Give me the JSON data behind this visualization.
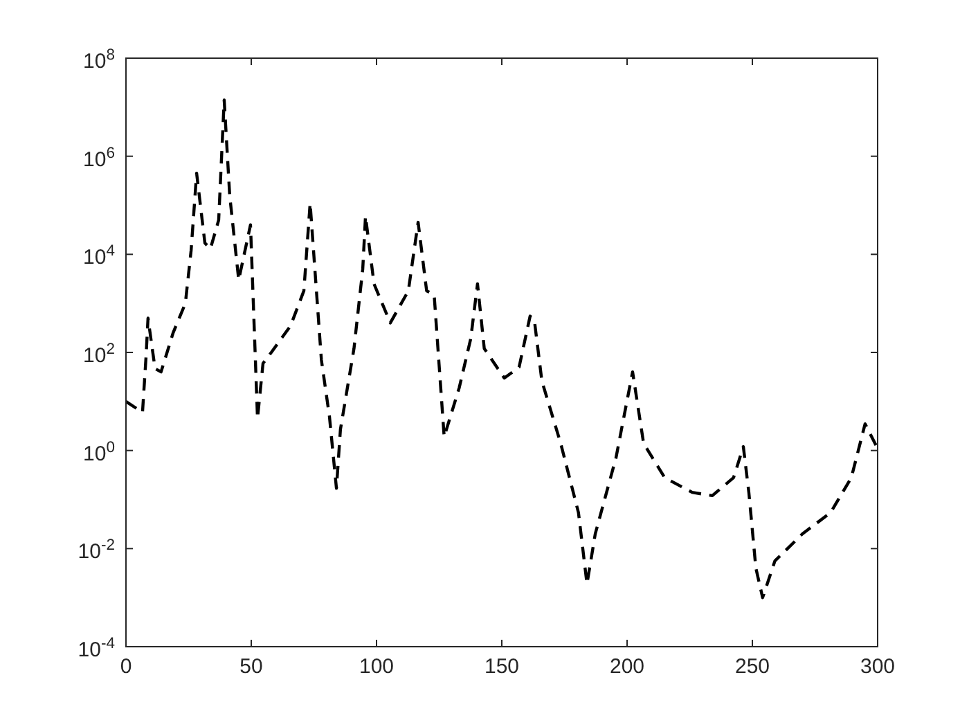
{
  "chart_data": {
    "type": "line",
    "log": true,
    "line_style": "dashed",
    "grid": false,
    "x": [
      0,
      6.6,
      8,
      8.8,
      11.6,
      14,
      18.8,
      23.7,
      26,
      28.2,
      31.5,
      33.7,
      37,
      39.2,
      41.4,
      45,
      49.7,
      52.5,
      54.7,
      58,
      65.7,
      71,
      73.5,
      78,
      81.2,
      84,
      85.6,
      91,
      94.5,
      95.6,
      99,
      105.5,
      112.7,
      116.6,
      120,
      123,
      127,
      133,
      137.6,
      140.3,
      143,
      151,
      156.9,
      161.3,
      163,
      166,
      173.5,
      180.6,
      184,
      187.3,
      195.6,
      202.2,
      206.6,
      215,
      226,
      234,
      242.5,
      246.4,
      248.6,
      251.4,
      254.1,
      259,
      270,
      281.2,
      289.5,
      295,
      300
    ],
    "series": [
      {
        "color": "#000000",
        "values": [
          10,
          6,
          80,
          500,
          47,
          40,
          250,
          1000,
          12000,
          450000,
          17000,
          13000,
          50000,
          14000000,
          160000,
          3000,
          40000,
          4.5,
          60,
          100,
          350,
          1800,
          110000,
          70,
          5,
          0.17,
          2.7,
          120,
          5000,
          60000,
          2500,
          400,
          1800,
          45000,
          1800,
          1500,
          1.9,
          19,
          190,
          2500,
          120,
          30,
          50,
          550,
          450,
          26,
          1.4,
          0.054,
          0.0019,
          0.02,
          0.72,
          40,
          1.4,
          0.28,
          0.14,
          0.12,
          0.28,
          1.2,
          0.14,
          0.004,
          0.001,
          0.0056,
          0.02,
          0.054,
          0.28,
          3.5,
          1.1
        ]
      }
    ],
    "xlim": [
      0,
      300
    ],
    "xticks": [
      0,
      50,
      100,
      150,
      200,
      250,
      300
    ],
    "ylim": [
      0.0001,
      100000000
    ],
    "yticks": [
      {
        "value": 0.0001,
        "label": "10$^{-4}$"
      },
      {
        "value": 0.01,
        "label": "10$^{-2}$"
      },
      {
        "value": 1,
        "label": "10$^{0}$"
      },
      {
        "value": 100,
        "label": "10$^{2}$"
      },
      {
        "value": 10000,
        "label": "10$^{4}$"
      },
      {
        "value": 1000000,
        "label": "10$^{6}$"
      },
      {
        "value": 100000000,
        "label": "10$^{8}$"
      }
    ]
  }
}
